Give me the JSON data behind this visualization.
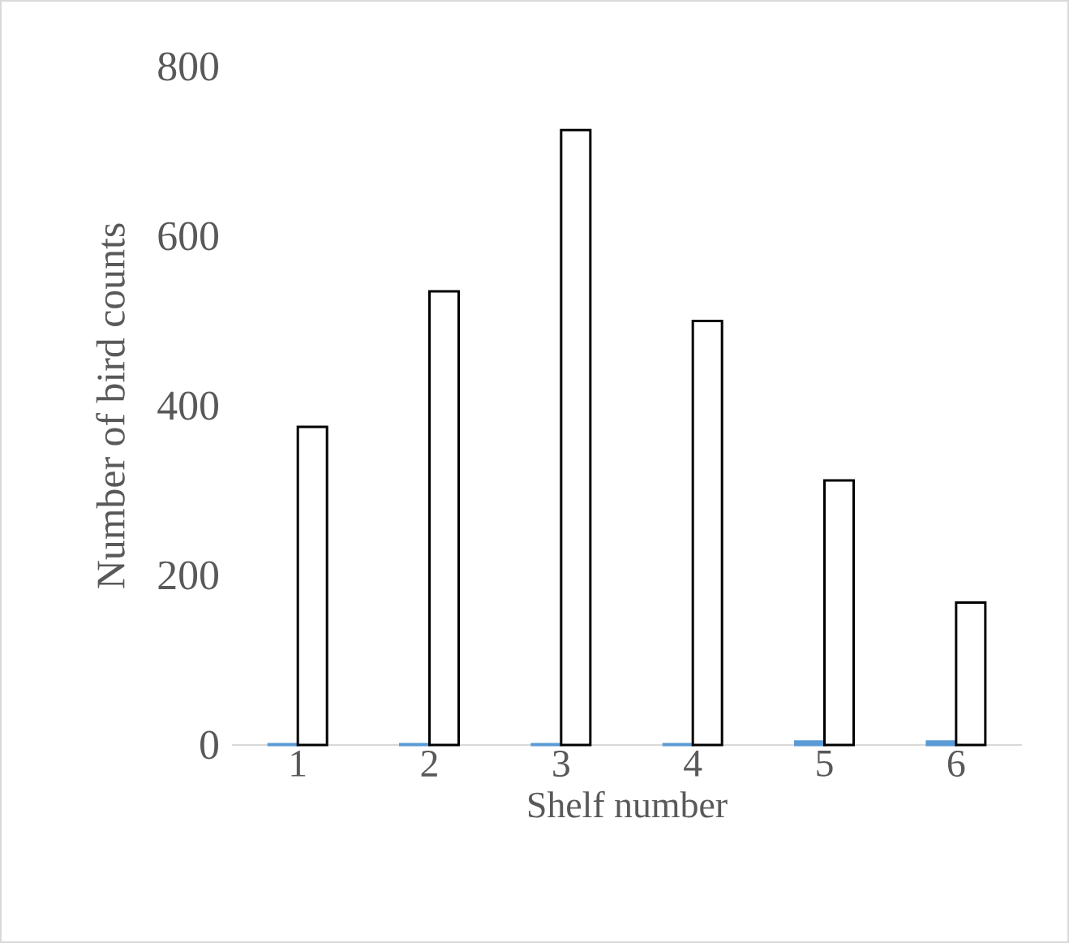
{
  "chart_data": {
    "type": "bar",
    "xlabel": "Shelf number",
    "ylabel": "Number of bird counts",
    "categories": [
      "1",
      "2",
      "3",
      "4",
      "5",
      "6"
    ],
    "series": [
      {
        "color": "#5b9bd5",
        "values": [
          1,
          1,
          1,
          1,
          4,
          4
        ]
      },
      {
        "color": "#ffffff",
        "values": [
          375,
          535,
          725,
          500,
          312,
          168
        ]
      }
    ],
    "ylim": [
      0,
      800
    ],
    "yticks": [
      0,
      200,
      400,
      600,
      800
    ],
    "grid": false
  }
}
